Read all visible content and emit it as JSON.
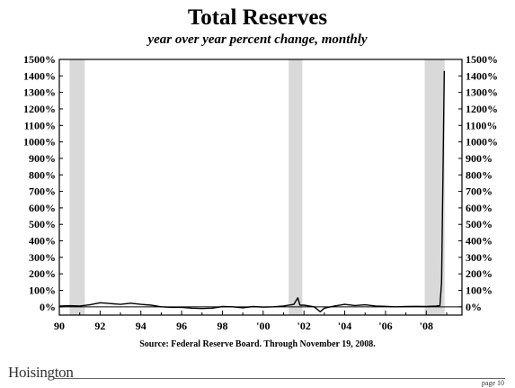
{
  "chart_data": {
    "type": "line",
    "title": "Total Reserves",
    "subtitle": "year over year percent change, monthly",
    "xlabel": "",
    "ylabel": "",
    "xlim": [
      1990.0,
      2009.75
    ],
    "ylim": [
      -50,
      1500
    ],
    "x_ticks": [
      1990,
      1992,
      1994,
      1996,
      1998,
      2000,
      2002,
      2004,
      2006,
      2008
    ],
    "x_tick_labels": [
      "90",
      "92",
      "94",
      "96",
      "98",
      "'00",
      "'02",
      "'04",
      "'06",
      "'08"
    ],
    "y_ticks": [
      0,
      100,
      200,
      300,
      400,
      500,
      600,
      700,
      800,
      900,
      1000,
      1100,
      1200,
      1300,
      1400,
      1500
    ],
    "y_tick_labels": [
      "0%",
      "100%",
      "200%",
      "300%",
      "400%",
      "500%",
      "600%",
      "700%",
      "800%",
      "900%",
      "1000%",
      "1100%",
      "1200%",
      "1300%",
      "1400%",
      "1500%"
    ],
    "grid": false,
    "recessions": [
      [
        1990.5,
        1991.25
      ],
      [
        2001.25,
        2001.92
      ],
      [
        2007.92,
        2008.9
      ]
    ],
    "recession_color": "#d9d9d9",
    "line_color": "#000000",
    "series": [
      {
        "x": [
          1990.0,
          1990.5,
          1991.0,
          1991.5,
          1992.0,
          1992.5,
          1993.0,
          1993.5,
          1994.0,
          1994.5,
          1995.0,
          1995.5,
          1996.0,
          1996.5,
          1997.0,
          1997.5,
          1998.0,
          1998.5,
          1999.0,
          1999.5,
          2000.0,
          2000.5,
          2001.0,
          2001.5,
          2001.7,
          2001.8,
          2002.0,
          2002.5,
          2002.8,
          2003.0,
          2003.5,
          2004.0,
          2004.5,
          2005.0,
          2005.5,
          2006.0,
          2006.5,
          2007.0,
          2007.5,
          2008.0,
          2008.5,
          2008.67,
          2008.75,
          2008.83,
          2008.88
        ],
        "y": [
          5,
          7,
          5,
          12,
          25,
          20,
          15,
          22,
          15,
          10,
          0,
          -3,
          -3,
          -8,
          -10,
          -8,
          2,
          0,
          -6,
          2,
          -2,
          0,
          5,
          15,
          55,
          10,
          10,
          0,
          -30,
          -8,
          5,
          15,
          8,
          12,
          5,
          3,
          0,
          2,
          3,
          2,
          5,
          8,
          150,
          900,
          1430
        ]
      }
    ]
  },
  "source": "Source: Federal Reserve Board. Through November 19, 2008.",
  "brand": "Hoisington",
  "page": "page 10"
}
